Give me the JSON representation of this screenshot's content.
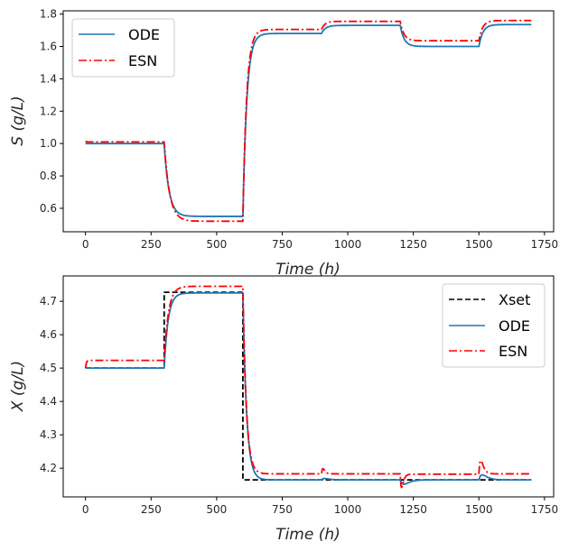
{
  "chart_data": [
    {
      "type": "line",
      "panel": "top",
      "title": "",
      "xlabel": "Time  (h)",
      "xlabel_var": "Time",
      "xlabel_unit": "(h)",
      "ylabel": "S  (g/L)",
      "ylabel_var": "S",
      "ylabel_unit": "(g/L)",
      "xlim": [
        -85,
        1785
      ],
      "ylim": [
        0.455,
        1.82
      ],
      "xticks": [
        0,
        250,
        500,
        750,
        1000,
        1250,
        1500,
        1750
      ],
      "xtick_labels": [
        "0",
        "250",
        "500",
        "750",
        "1000",
        "1250",
        "1500",
        "1750"
      ],
      "yticks": [
        0.6,
        0.8,
        1.0,
        1.2,
        1.4,
        1.6,
        1.8
      ],
      "ytick_labels": [
        "0.6",
        "0.8",
        "1.0",
        "1.2",
        "1.4",
        "1.6",
        "1.8"
      ],
      "grid": false,
      "legend": {
        "placement": "upper-left",
        "entries": [
          "ODE",
          "ESN"
        ]
      },
      "series": [
        {
          "name": "ODE",
          "color": "#1f77b4",
          "style": "solid",
          "segments": [
            {
              "t0": 0,
              "t1": 300,
              "start": 1.0,
              "end": 1.0,
              "tau": 1
            },
            {
              "t0": 300,
              "t1": 600,
              "start": 1.0,
              "end": 0.55,
              "tau": 18
            },
            {
              "t0": 600,
              "t1": 900,
              "start": 0.55,
              "end": 1.68,
              "tau": 15
            },
            {
              "t0": 900,
              "t1": 1200,
              "start": 1.68,
              "end": 1.73,
              "tau": 15
            },
            {
              "t0": 1200,
              "t1": 1500,
              "start": 1.73,
              "end": 1.6,
              "tau": 15
            },
            {
              "t0": 1500,
              "t1": 1700,
              "start": 1.6,
              "end": 1.735,
              "tau": 15
            }
          ]
        },
        {
          "name": "ESN",
          "color": "#ff0000",
          "style": "dashdot",
          "segments": [
            {
              "t0": 0,
              "t1": 300,
              "start": 1.015,
              "end": 1.01,
              "tau": 3
            },
            {
              "t0": 300,
              "t1": 600,
              "start": 1.01,
              "end": 0.52,
              "tau": 20
            },
            {
              "t0": 600,
              "t1": 900,
              "start": 0.52,
              "end": 1.705,
              "tau": 14
            },
            {
              "t0": 900,
              "t1": 1200,
              "start": 1.705,
              "end": 1.755,
              "tau": 13
            },
            {
              "t0": 1200,
              "t1": 1500,
              "start": 1.755,
              "end": 1.635,
              "tau": 14
            },
            {
              "t0": 1500,
              "t1": 1700,
              "start": 1.635,
              "end": 1.76,
              "tau": 14
            }
          ]
        }
      ]
    },
    {
      "type": "line",
      "panel": "bottom",
      "title": "",
      "xlabel": "Time  (h)",
      "xlabel_var": "Time",
      "xlabel_unit": "(h)",
      "ylabel": "X  (g/L)",
      "ylabel_var": "X",
      "ylabel_unit": "(g/L)",
      "xlim": [
        -85,
        1785
      ],
      "ylim": [
        4.114,
        4.776
      ],
      "xticks": [
        0,
        250,
        500,
        750,
        1000,
        1250,
        1500,
        1750
      ],
      "xtick_labels": [
        "0",
        "250",
        "500",
        "750",
        "1000",
        "1250",
        "1500",
        "1750"
      ],
      "yticks": [
        4.2,
        4.3,
        4.4,
        4.5,
        4.6,
        4.7
      ],
      "ytick_labels": [
        "4.2",
        "4.3",
        "4.4",
        "4.5",
        "4.6",
        "4.7"
      ],
      "grid": false,
      "legend": {
        "placement": "upper-right",
        "entries": [
          "Xset",
          "ODE",
          "ESN"
        ]
      },
      "series": [
        {
          "name": "Xset",
          "color": "#000000",
          "style": "dashed",
          "steps": [
            {
              "t0": 0,
              "t1": 300,
              "value": 4.5
            },
            {
              "t0": 300,
              "t1": 600,
              "value": 4.727
            },
            {
              "t0": 600,
              "t1": 1700,
              "value": 4.165
            }
          ]
        },
        {
          "name": "ODE",
          "color": "#1f77b4",
          "style": "solid",
          "segments": [
            {
              "t0": 0,
              "t1": 300,
              "start": 4.5,
              "end": 4.5,
              "tau": 1
            },
            {
              "t0": 300,
              "t1": 600,
              "start": 4.5,
              "end": 4.725,
              "tau": 15
            },
            {
              "t0": 600,
              "t1": 900,
              "start": 4.725,
              "end": 4.165,
              "tau": 14
            },
            {
              "t0": 900,
              "t1": 1200,
              "start": 4.165,
              "end": 4.165,
              "tau": 1
            },
            {
              "t0": 1200,
              "t1": 1500,
              "start": 4.165,
              "end": 4.165,
              "tau": 1
            },
            {
              "t0": 1500,
              "t1": 1700,
              "start": 4.165,
              "end": 4.165,
              "tau": 1
            }
          ],
          "bumps": [
            {
              "t": 900,
              "amp": 0.004,
              "tau": 12
            },
            {
              "t": 1200,
              "amp": -0.013,
              "tau": 14
            },
            {
              "t": 1500,
              "amp": 0.015,
              "tau": 13
            }
          ]
        },
        {
          "name": "ESN",
          "color": "#ff0000",
          "style": "dashdot",
          "segments": [
            {
              "t0": 0,
              "t1": 300,
              "start": 4.5,
              "end": 4.523,
              "tau": 3
            },
            {
              "t0": 300,
              "t1": 600,
              "start": 4.523,
              "end": 4.745,
              "tau": 16
            },
            {
              "t0": 600,
              "t1": 900,
              "start": 4.745,
              "end": 4.183,
              "tau": 13
            },
            {
              "t0": 900,
              "t1": 1200,
              "start": 4.183,
              "end": 4.183,
              "tau": 1
            },
            {
              "t0": 1200,
              "t1": 1500,
              "start": 4.183,
              "end": 4.182,
              "tau": 1
            },
            {
              "t0": 1500,
              "t1": 1700,
              "start": 4.182,
              "end": 4.183,
              "tau": 1
            }
          ],
          "bumps": [
            {
              "t": 900,
              "amp": 0.016,
              "tau": 5
            },
            {
              "t": 1200,
              "amp": -0.04,
              "tau": 5
            },
            {
              "t": 1500,
              "amp": 0.04,
              "tau": 7
            }
          ]
        }
      ]
    }
  ]
}
